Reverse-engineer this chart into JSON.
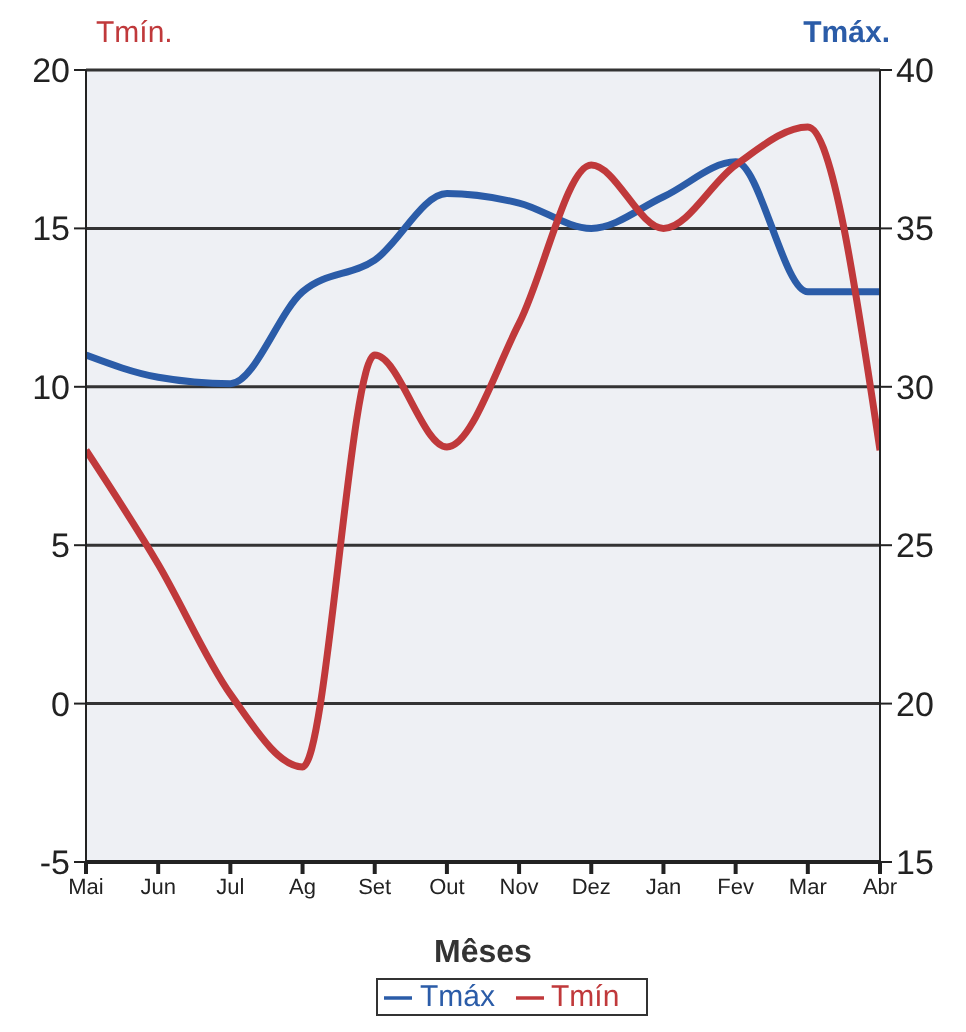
{
  "chart_data": {
    "type": "line",
    "xlabel": "Mêses",
    "ylabel": "Tmín.",
    "y2label": "Tmáx.",
    "categories": [
      "Mai",
      "Jun",
      "Jul",
      "Ag",
      "Set",
      "Out",
      "Nov",
      "Dez",
      "Jan",
      "Fev",
      "Mar",
      "Abr"
    ],
    "series": [
      {
        "name": "Tmáx",
        "color": "#2b5ca8",
        "axis": "y2",
        "values": [
          31,
          30.3,
          30.1,
          33,
          34,
          36.1,
          35.8,
          35,
          36,
          37.1,
          33,
          33
        ]
      },
      {
        "name": "Tmín",
        "color": "#c0393b",
        "values": [
          8,
          4.4,
          0.3,
          -2,
          11,
          8.1,
          12,
          17,
          15,
          17,
          18.2,
          8
        ]
      }
    ],
    "ylim": [
      -5,
      20
    ],
    "yticks": [
      -5,
      0,
      5,
      10,
      15,
      20
    ],
    "y2lim": [
      15,
      40
    ],
    "y2ticks": [
      15,
      20,
      25,
      30,
      35,
      40
    ],
    "grid": "y",
    "legend": "bottom",
    "marker": "none",
    "line_style": "solid"
  }
}
